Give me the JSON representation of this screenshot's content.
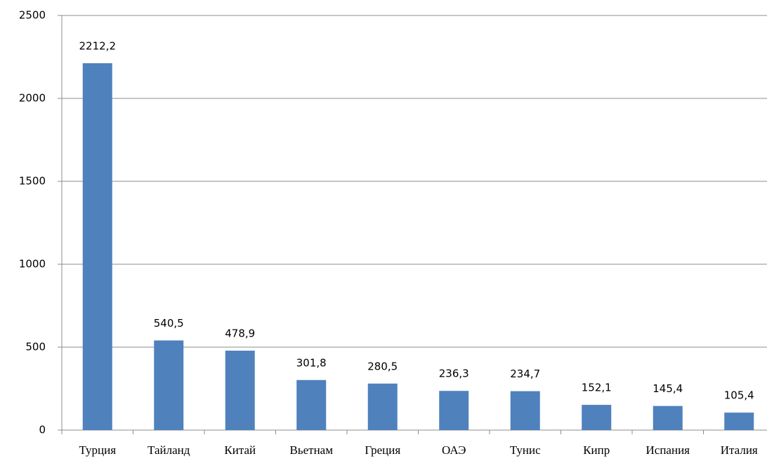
{
  "chart_data": {
    "type": "bar",
    "categories": [
      "Турция",
      "Тайланд",
      "Китай",
      "Вьетнам",
      "Греция",
      "ОАЭ",
      "Тунис",
      "Кипр",
      "Испания",
      "Италия"
    ],
    "values": [
      2212.2,
      540.5,
      478.9,
      301.8,
      280.5,
      236.3,
      234.7,
      152.1,
      145.4,
      105.4
    ],
    "value_labels": [
      "2212,2",
      "540,5",
      "478,9",
      "301,8",
      "280,5",
      "236,3",
      "234,7",
      "152,1",
      "145,4",
      "105,4"
    ],
    "color": "#4f81bd",
    "ylim": [
      0,
      2500
    ],
    "yticks": [
      0,
      500,
      1000,
      1500,
      2000,
      2500
    ],
    "grid": true
  }
}
